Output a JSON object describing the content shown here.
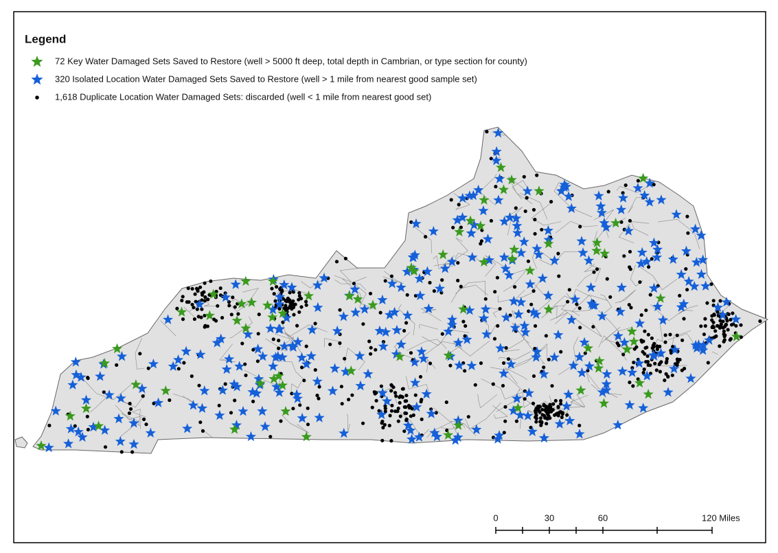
{
  "legend": {
    "title": "Legend",
    "items": [
      "72 Key Water Damaged Sets Saved to Restore (well > 5000 ft deep, total depth in Cambrian, or type section for county)",
      "320 Isolated Location Water Damaged Sets Saved to Restore (well > 1 mile from nearest good sample set)",
      "1,618 Duplicate Location Water Damaged Sets: discarded (well < 1 mile from nearest good set)"
    ]
  },
  "scale_bar": {
    "labels": [
      "0",
      "30",
      "60",
      "120 Miles"
    ]
  }
}
